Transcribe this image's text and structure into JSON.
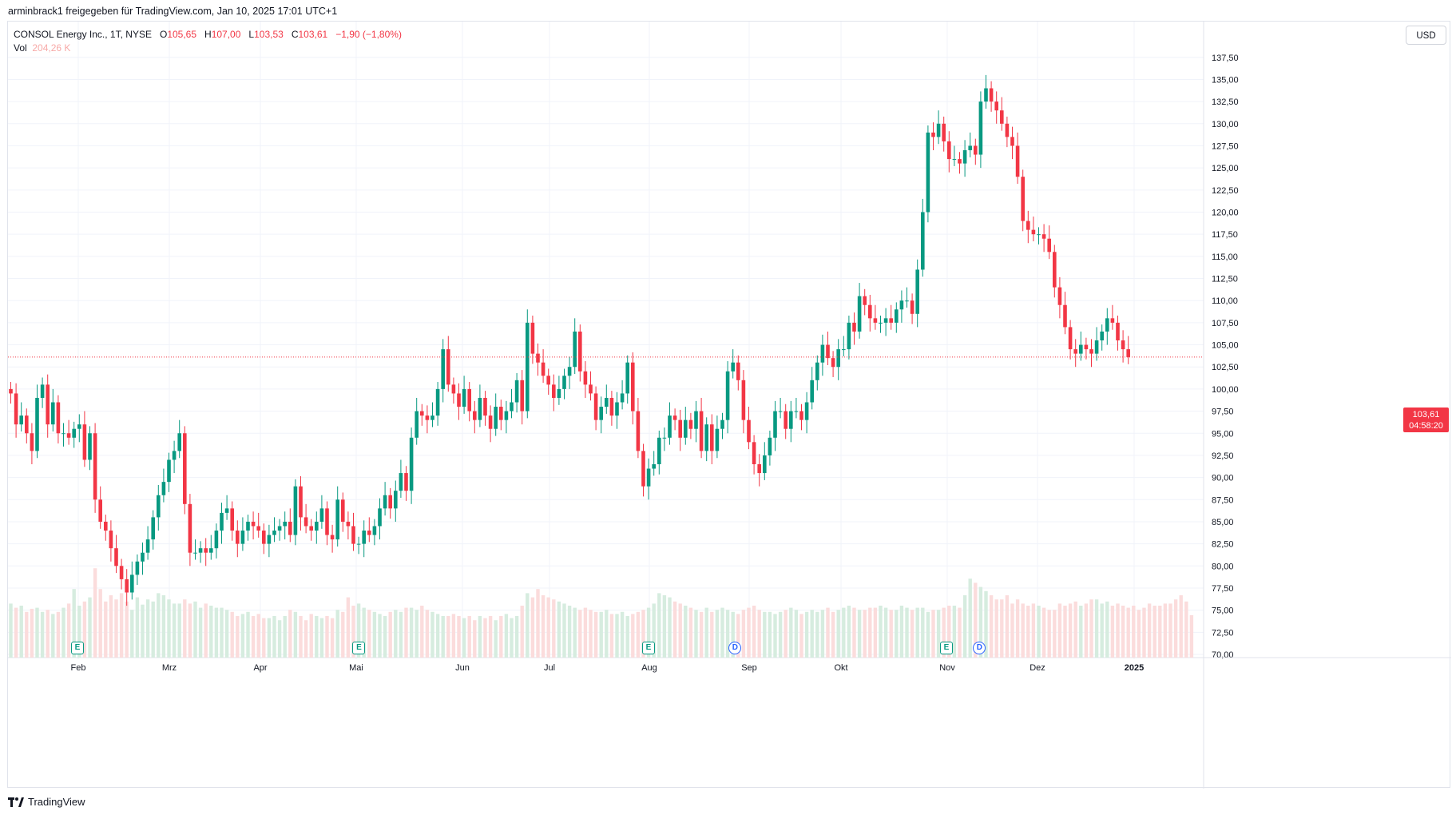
{
  "header": {
    "caption": "arminbrack1 freigegeben für TradingView.com, Jan 10, 2025 17:01 UTC+1"
  },
  "legend": {
    "symbol": "CONSOL Energy Inc., 1T, NYSE",
    "o_label": "O",
    "o_value": "105,65",
    "h_label": "H",
    "h_value": "107,00",
    "l_label": "L",
    "l_value": "103,53",
    "c_label": "C",
    "c_value": "103,61",
    "change": "−1,90 (−1,80%)",
    "vol_label": "Vol",
    "vol_value": "204,26 K"
  },
  "price_axis": {
    "currency": "USD",
    "last_price": "103,61",
    "countdown": "04:58:20"
  },
  "footer": {
    "brand": "TradingView"
  },
  "colors": {
    "up": "#089981",
    "down": "#f23645",
    "vol_up": "#d6ecdf",
    "vol_down": "#fbdcdc",
    "grid": "#f0f3fa"
  },
  "event_markers": [
    {
      "kind": "E",
      "month": "Feb",
      "day": 1
    },
    {
      "kind": "E",
      "month": "Mai",
      "day": 2
    },
    {
      "kind": "E",
      "month": "Aug",
      "day": 1
    },
    {
      "kind": "D",
      "month": "Aug",
      "day": 27
    },
    {
      "kind": "E",
      "month": "Nov",
      "day": 1
    },
    {
      "kind": "D",
      "month": "Nov",
      "day": 12
    }
  ],
  "chart_data": {
    "type": "candlestick",
    "title": "CONSOL Energy Inc., 1T, NYSE",
    "ylim": [
      69.5,
      140
    ],
    "y_ticks": [
      "70,00",
      "72,50",
      "75,00",
      "77,50",
      "80,00",
      "82,50",
      "85,00",
      "87,50",
      "90,00",
      "92,50",
      "95,00",
      "97,50",
      "100,00",
      "102,50",
      "105,00",
      "107,50",
      "110,00",
      "112,50",
      "115,00",
      "117,50",
      "120,00",
      "122,50",
      "125,00",
      "127,50",
      "130,00",
      "132,50",
      "135,00",
      "137,50"
    ],
    "x_ticks": [
      "Feb",
      "Mrz",
      "Apr",
      "Mai",
      "Jun",
      "Jul",
      "Aug",
      "Sep",
      "Okt",
      "Nov",
      "Dez",
      "2025"
    ],
    "grid": true,
    "closes": [
      99.5,
      96,
      97,
      95,
      93,
      99,
      100.5,
      96,
      98.5,
      95,
      95,
      94.5,
      95.5,
      96,
      92,
      95,
      87.5,
      85,
      84,
      82,
      80,
      78.5,
      77,
      79,
      80.5,
      81.5,
      83,
      85.5,
      88,
      89.5,
      92,
      93,
      95,
      87,
      81.5,
      81.5,
      82,
      81.5,
      82,
      84,
      86,
      86.5,
      84,
      82.5,
      84,
      85,
      84.5,
      84,
      82.5,
      83.5,
      84,
      84.5,
      85,
      83.5,
      89,
      85.5,
      84.5,
      84,
      85,
      86.5,
      83.5,
      83,
      87.5,
      85,
      84.5,
      82.5,
      82.5,
      84,
      83.5,
      84.5,
      86.5,
      88,
      86.5,
      88.5,
      90.5,
      88.5,
      94.5,
      97.5,
      97,
      96.5,
      97,
      100,
      104.5,
      100.5,
      99.5,
      98,
      100,
      97.5,
      96.5,
      99,
      97,
      95.5,
      98,
      96.5,
      97.5,
      98.5,
      101,
      97.5,
      107.5,
      104,
      103,
      101.5,
      100.5,
      99,
      100,
      101.5,
      102.5,
      106.5,
      102,
      100.5,
      99.5,
      96.5,
      98,
      99,
      97,
      98.5,
      99.5,
      103,
      97.5,
      93,
      89,
      91,
      91.5,
      94.5,
      94.5,
      97,
      96.5,
      94.5,
      96.5,
      95.5,
      97.5,
      93,
      96,
      93,
      95.5,
      96.5,
      102,
      103,
      101,
      96.5,
      94,
      91.5,
      90.5,
      92.5,
      94.5,
      97.5,
      97.5,
      95.5,
      97.5,
      97.5,
      96.5,
      98.5,
      101,
      103,
      105,
      103.5,
      102.5,
      104.5,
      104.5,
      107.5,
      106.5,
      110.5,
      109.5,
      108,
      107.5,
      107.5,
      108,
      107.5,
      109,
      110,
      110,
      108.5,
      113.5,
      120,
      129,
      128.5,
      130,
      128,
      126,
      126,
      125.5,
      127,
      127.5,
      126.5,
      132.5,
      134,
      132.5,
      131.5,
      130,
      128.5,
      127.5,
      124,
      119,
      118,
      117.5,
      117.5,
      117,
      115.5,
      111.5,
      109.5,
      107,
      104.5,
      104,
      105,
      104.5,
      104,
      105.5,
      106.5,
      108,
      107.5,
      105.5,
      104.5,
      103.61
    ],
    "volumes_K": [
      260,
      240,
      250,
      220,
      235,
      240,
      220,
      230,
      210,
      220,
      240,
      260,
      330,
      250,
      270,
      290,
      430,
      330,
      270,
      300,
      280,
      310,
      270,
      230,
      290,
      255,
      280,
      270,
      310,
      300,
      280,
      260,
      260,
      280,
      260,
      270,
      240,
      260,
      250,
      240,
      240,
      230,
      220,
      200,
      210,
      220,
      200,
      210,
      190,
      190,
      200,
      180,
      200,
      230,
      220,
      200,
      180,
      210,
      200,
      190,
      200,
      190,
      230,
      220,
      290,
      250,
      260,
      240,
      230,
      220,
      210,
      200,
      220,
      230,
      220,
      240,
      240,
      230,
      250,
      230,
      220,
      210,
      200,
      200,
      210,
      200,
      190,
      200,
      180,
      200,
      190,
      200,
      180,
      200,
      210,
      190,
      200,
      250,
      310,
      290,
      330,
      300,
      290,
      280,
      270,
      260,
      250,
      240,
      230,
      240,
      230,
      220,
      220,
      230,
      210,
      210,
      220,
      200,
      210,
      220,
      230,
      240,
      260,
      310,
      300,
      290,
      270,
      260,
      250,
      240,
      230,
      220,
      240,
      220,
      230,
      240,
      230,
      220,
      210,
      230,
      240,
      250,
      230,
      220,
      220,
      210,
      220,
      230,
      240,
      230,
      210,
      220,
      230,
      220,
      230,
      240,
      220,
      230,
      240,
      250,
      240,
      230,
      230,
      240,
      240,
      250,
      240,
      230,
      230,
      250,
      240,
      230,
      240,
      240,
      220,
      230,
      230,
      240,
      250,
      250,
      240,
      300,
      380,
      360,
      340,
      320,
      300,
      280,
      280,
      300,
      260,
      280,
      260,
      250,
      260,
      250,
      240,
      230,
      230,
      260,
      250,
      260,
      270,
      250,
      260,
      280,
      280,
      260,
      270,
      250,
      260,
      250,
      240,
      250,
      230,
      240,
      260,
      250,
      250,
      260,
      260,
      280,
      300,
      270,
      204.26
    ]
  }
}
